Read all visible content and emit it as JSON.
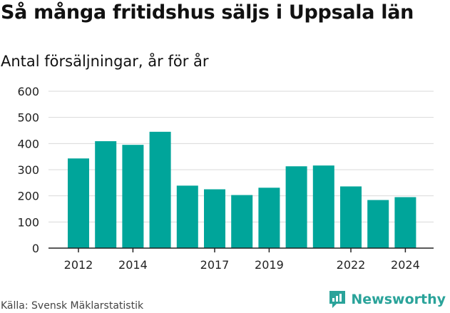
{
  "title": "Så många fritidshus säljs i Uppsala län",
  "subtitle": "Antal försäljningar, år för år",
  "source": "Källa: Svensk Mäklarstatistik",
  "brand": {
    "name": "Newsworthy",
    "icon": "newsworthy-logo-icon"
  },
  "colors": {
    "bar": "#00a59a",
    "grid": "#d9d9d9",
    "axis": "#222222",
    "brand": "#2aa39a"
  },
  "chart_data": {
    "type": "bar",
    "categories": [
      "2012",
      "2013",
      "2014",
      "2015",
      "2016",
      "2017",
      "2018",
      "2019",
      "2020",
      "2021",
      "2022",
      "2023",
      "2024"
    ],
    "values": [
      343,
      409,
      395,
      445,
      239,
      225,
      203,
      231,
      313,
      316,
      236,
      184,
      195
    ],
    "x_tick_labels": [
      "2012",
      "2014",
      "2017",
      "2019",
      "2022",
      "2024"
    ],
    "y_ticks": [
      0,
      100,
      200,
      300,
      400,
      500,
      600
    ],
    "ylim": [
      0,
      600
    ],
    "grid": true,
    "legend": "none"
  }
}
